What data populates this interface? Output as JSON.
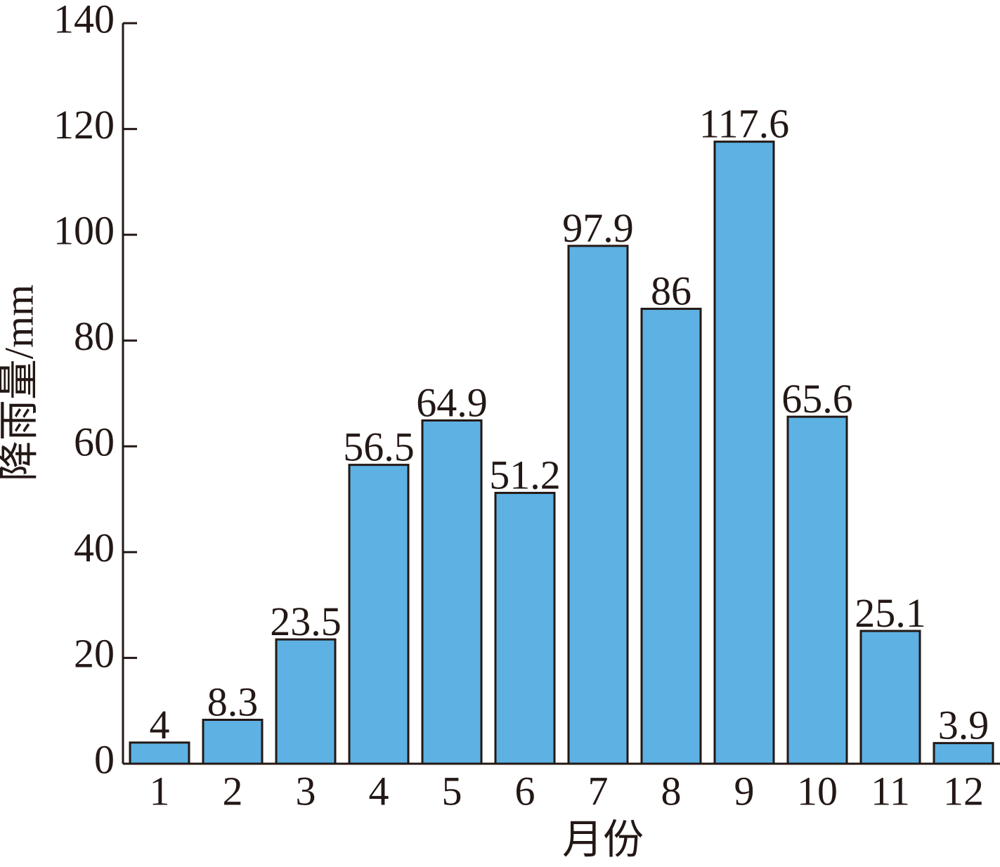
{
  "chart_data": {
    "type": "bar",
    "categories": [
      "1",
      "2",
      "3",
      "4",
      "5",
      "6",
      "7",
      "8",
      "9",
      "10",
      "11",
      "12"
    ],
    "values": [
      4,
      8.3,
      23.5,
      56.5,
      64.9,
      51.2,
      97.9,
      86,
      117.6,
      65.6,
      25.1,
      3.9
    ],
    "data_labels": [
      "4",
      "8.3",
      "23.5",
      "56.5",
      "64.9",
      "51.2",
      "97.9",
      "86",
      "117.6",
      "65.6",
      "25.1",
      "3.9"
    ],
    "xlabel": "月份",
    "ylabel": "降雨量/mm",
    "ylim": [
      0,
      140
    ],
    "yticks": [
      0,
      20,
      40,
      60,
      80,
      100,
      120,
      140
    ],
    "bar_color": "#5DB1E3",
    "grid": false
  }
}
